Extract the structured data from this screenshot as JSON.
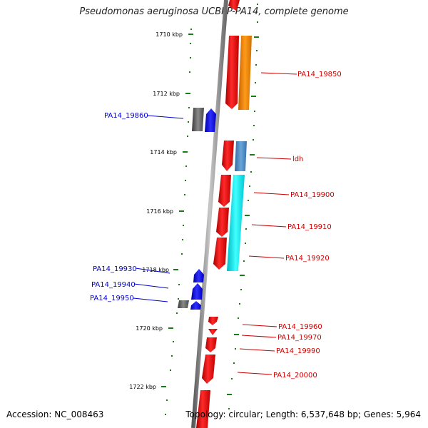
{
  "title": "Pseudomonas aeruginosa UCBPP-PA14, complete genome",
  "accession": "Accession: NC_008463",
  "topology": "Topology: circular; Length: 6,537,648 bp; Genes: 5,964",
  "ruler": {
    "color": "#1a7a1a",
    "ticks": [
      {
        "label": "1710 kbp",
        "kbp": 1710
      },
      {
        "label": "1712 kbp",
        "kbp": 1712
      },
      {
        "label": "1714 kbp",
        "kbp": 1714
      },
      {
        "label": "1716 kbp",
        "kbp": 1716
      },
      {
        "label": "1718 kbp",
        "kbp": 1718
      },
      {
        "label": "1720 kbp",
        "kbp": 1720
      },
      {
        "label": "1722 kbp",
        "kbp": 1722
      }
    ]
  },
  "colors": {
    "forward_label": "#cc0000",
    "reverse_label": "#0000cc",
    "backbone": "#888888",
    "cds_red": "#ee1111",
    "orange": "#ff8c00",
    "steelblue": "#4f8fc8",
    "cyan": "#00e8f0",
    "gray": "#606060",
    "blue": "#1010e8"
  },
  "gene_labels_right": [
    "PA14_19850",
    "ldh",
    "PA14_19900",
    "PA14_19910",
    "PA14_19920",
    "PA14_19960",
    "PA14_19970",
    "PA14_19990",
    "PA14_20000"
  ],
  "gene_labels_left": [
    "PA14_19860",
    "PA14_19930",
    "PA14_19940",
    "PA14_19950"
  ]
}
